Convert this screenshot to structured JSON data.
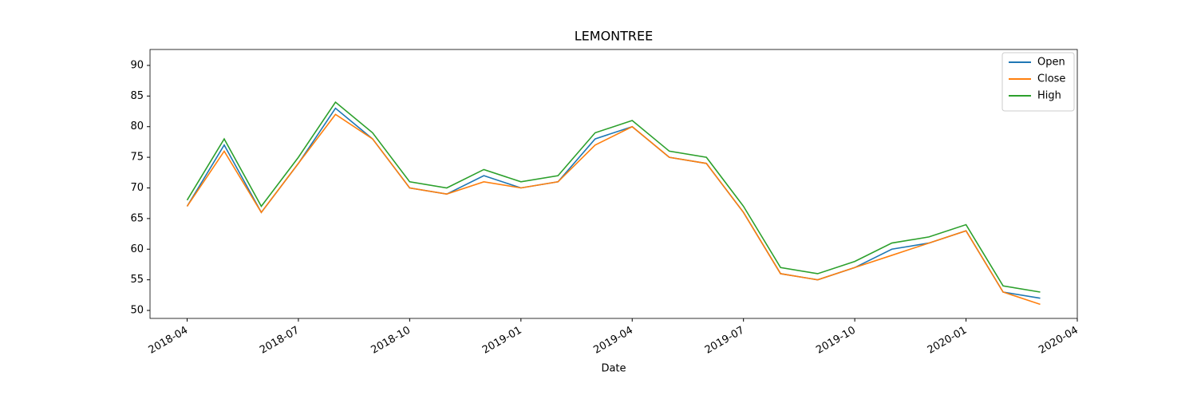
{
  "chart_data": {
    "type": "line",
    "title": "LEMONTREE",
    "x_label": "Date",
    "x": [
      "2018-04",
      "2018-05",
      "2018-06",
      "2018-07",
      "2018-08",
      "2018-09",
      "2018-10",
      "2018-11",
      "2018-12",
      "2019-01",
      "2019-02",
      "2019-03",
      "2019-04",
      "2019-05",
      "2019-06",
      "2019-07",
      "2019-08",
      "2019-09",
      "2019-10",
      "2019-11",
      "2019-12",
      "2020-01",
      "2020-02",
      "2020-03"
    ],
    "series": [
      {
        "name": "Open",
        "color": "#1f77b4",
        "values": [
          67,
          77,
          66,
          74,
          83,
          78,
          70,
          69,
          72,
          70,
          71,
          78,
          80,
          75,
          74,
          66,
          56,
          55,
          57,
          60,
          61,
          63,
          53,
          52
        ]
      },
      {
        "name": "Close",
        "color": "#ff7f0e",
        "values": [
          67,
          76,
          66,
          74,
          82,
          78,
          70,
          69,
          71,
          70,
          71,
          77,
          80,
          75,
          74,
          66,
          56,
          55,
          57,
          59,
          61,
          63,
          53,
          51
        ]
      },
      {
        "name": "High",
        "color": "#2ca02c",
        "values": [
          68,
          78,
          67,
          75,
          84,
          79,
          71,
          70,
          73,
          71,
          72,
          79,
          81,
          76,
          75,
          67,
          57,
          56,
          58,
          61,
          62,
          64,
          54,
          53
        ]
      }
    ],
    "xlim": [
      "2018-03",
      "2020-04"
    ],
    "xticks": [
      "2018-04",
      "2018-07",
      "2018-10",
      "2019-01",
      "2019-04",
      "2019-07",
      "2019-10",
      "2020-01",
      "2020-04"
    ],
    "ylim": [
      48.7,
      92.6
    ],
    "yticks": [
      50,
      55,
      60,
      65,
      70,
      75,
      80,
      85,
      90
    ],
    "legend": "upper right"
  }
}
